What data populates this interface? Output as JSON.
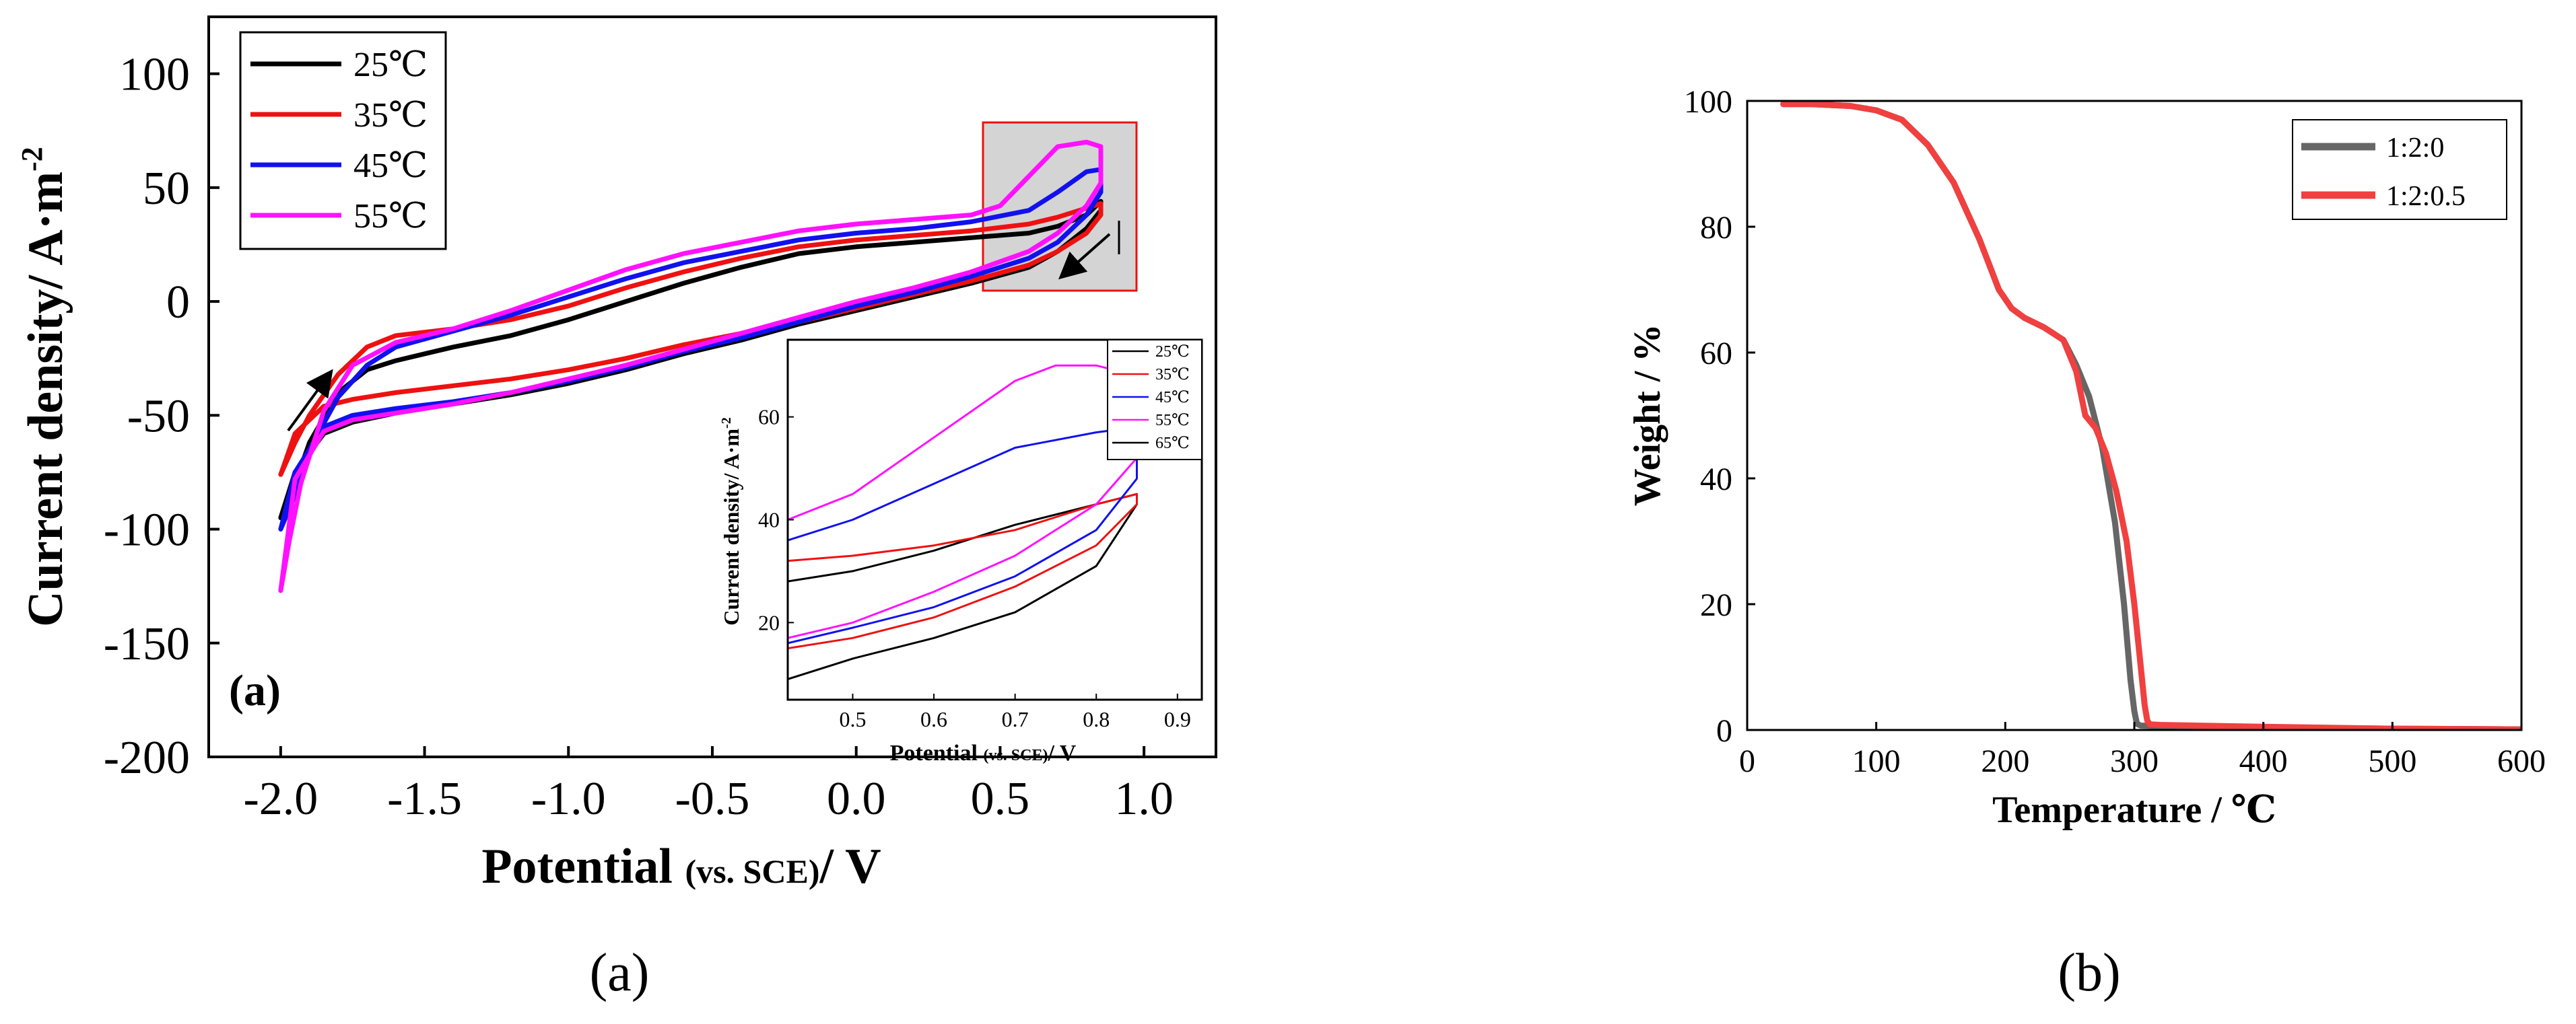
{
  "panels": {
    "a": {
      "caption": "(a)",
      "panel_tag": "(a)"
    },
    "b": {
      "caption": "(b)"
    }
  },
  "chart_data": [
    {
      "id": "a-main",
      "type": "line",
      "title": "",
      "xlabel_parts": [
        "Potential ",
        "(vs. SCE)",
        "/ V"
      ],
      "ylabel_parts": [
        "Current density/ A·m",
        "-2"
      ],
      "xlim": [
        -2.25,
        1.25
      ],
      "ylim": [
        -200,
        125
      ],
      "xticks": [
        -2.0,
        -1.5,
        -1.0,
        -0.5,
        0.0,
        0.5,
        1.0
      ],
      "xtick_labels": [
        "-2.0",
        "-1.5",
        "-1.0",
        "-0.5",
        "0.0",
        "0.5",
        "1.0"
      ],
      "yticks": [
        -200,
        -150,
        -100,
        -50,
        0,
        50,
        100
      ],
      "ytick_labels": [
        "-200",
        "-150",
        "-100",
        "-50",
        "0",
        "50",
        "100"
      ],
      "legend": [
        {
          "label": "25℃",
          "color": "#000000"
        },
        {
          "label": "35℃",
          "color": "#ee1111"
        },
        {
          "label": "45℃",
          "color": "#1111ee"
        },
        {
          "label": "55℃",
          "color": "#ff11ff"
        }
      ],
      "series": [
        {
          "name": "25℃",
          "color": "#000000",
          "x": [
            -2.0,
            -1.95,
            -1.9,
            -1.8,
            -1.7,
            -1.6,
            -1.4,
            -1.2,
            -1.0,
            -0.8,
            -0.6,
            -0.4,
            -0.2,
            0.0,
            0.2,
            0.4,
            0.6,
            0.7,
            0.8,
            0.85,
            0.85,
            0.8,
            0.7,
            0.6,
            0.4,
            0.2,
            0.0,
            -0.2,
            -0.4,
            -0.6,
            -0.8,
            -1.0,
            -1.2,
            -1.4,
            -1.6,
            -1.75,
            -1.85,
            -1.95,
            -2.0
          ],
          "y": [
            -95,
            -80,
            -62,
            -40,
            -30,
            -26,
            -20,
            -15,
            -8,
            0,
            8,
            15,
            21,
            24,
            26,
            28,
            30,
            33,
            38,
            44,
            40,
            32,
            22,
            15,
            8,
            2,
            -4,
            -10,
            -17,
            -23,
            -30,
            -36,
            -41,
            -45,
            -49,
            -53,
            -58,
            -75,
            -95
          ]
        },
        {
          "name": "35℃",
          "color": "#ee1111",
          "x": [
            -2.0,
            -1.95,
            -1.9,
            -1.8,
            -1.7,
            -1.6,
            -1.4,
            -1.2,
            -1.0,
            -0.8,
            -0.6,
            -0.4,
            -0.2,
            0.0,
            0.2,
            0.4,
            0.6,
            0.7,
            0.8,
            0.85,
            0.85,
            0.8,
            0.7,
            0.6,
            0.4,
            0.2,
            0.0,
            -0.2,
            -0.4,
            -0.6,
            -0.8,
            -1.0,
            -1.2,
            -1.4,
            -1.6,
            -1.75,
            -1.85,
            -1.95,
            -2.0
          ],
          "y": [
            -76,
            -62,
            -50,
            -32,
            -20,
            -15,
            -12,
            -8,
            -2,
            6,
            13,
            19,
            24,
            27,
            29,
            31,
            34,
            37,
            41,
            43,
            38,
            30,
            22,
            16,
            9,
            3,
            -3,
            -9,
            -14,
            -19,
            -25,
            -30,
            -34,
            -37,
            -40,
            -43,
            -46,
            -58,
            -76
          ]
        },
        {
          "name": "45℃",
          "color": "#1111ee",
          "x": [
            -2.0,
            -1.95,
            -1.9,
            -1.8,
            -1.7,
            -1.6,
            -1.4,
            -1.2,
            -1.0,
            -0.8,
            -0.6,
            -0.4,
            -0.2,
            0.0,
            0.2,
            0.4,
            0.6,
            0.7,
            0.8,
            0.85,
            0.85,
            0.8,
            0.7,
            0.6,
            0.4,
            0.2,
            0.0,
            -0.2,
            -0.4,
            -0.6,
            -0.8,
            -1.0,
            -1.2,
            -1.4,
            -1.6,
            -1.75,
            -1.85,
            -1.95,
            -2.0
          ],
          "y": [
            -100,
            -85,
            -65,
            -42,
            -28,
            -20,
            -13,
            -6,
            2,
            10,
            17,
            22,
            27,
            30,
            32,
            35,
            40,
            48,
            57,
            58,
            48,
            38,
            26,
            19,
            11,
            4,
            -2,
            -9,
            -16,
            -22,
            -29,
            -35,
            -40,
            -44,
            -47,
            -50,
            -55,
            -75,
            -100
          ]
        },
        {
          "name": "55℃",
          "color": "#ff11ff",
          "x": [
            -2.0,
            -1.97,
            -1.93,
            -1.85,
            -1.75,
            -1.6,
            -1.4,
            -1.2,
            -1.0,
            -0.8,
            -0.6,
            -0.4,
            -0.2,
            0.0,
            0.2,
            0.4,
            0.5,
            0.6,
            0.7,
            0.8,
            0.85,
            0.85,
            0.8,
            0.7,
            0.6,
            0.4,
            0.2,
            0.0,
            -0.2,
            -0.4,
            -0.6,
            -0.8,
            -1.0,
            -1.2,
            -1.4,
            -1.6,
            -1.75,
            -1.85,
            -1.95,
            -2.0
          ],
          "y": [
            -127,
            -105,
            -80,
            -48,
            -28,
            -18,
            -12,
            -4,
            5,
            14,
            21,
            26,
            31,
            34,
            36,
            38,
            42,
            55,
            68,
            70,
            68,
            52,
            42,
            30,
            22,
            13,
            6,
            0,
            -7,
            -14,
            -21,
            -28,
            -34,
            -40,
            -45,
            -49,
            -52,
            -57,
            -78,
            -127
          ]
        }
      ],
      "annotations": [
        "arrow-forward-scan",
        "arrow-reverse-scan",
        "zoom-box"
      ]
    },
    {
      "id": "a-inset",
      "type": "line",
      "xlabel_parts": [
        "Potential ",
        "(vs. SCE)",
        "/ V"
      ],
      "ylabel_parts": [
        "Current density/ A·m",
        "-2"
      ],
      "xlim": [
        0.42,
        0.93
      ],
      "ylim": [
        5,
        75
      ],
      "xticks": [
        0.5,
        0.6,
        0.7,
        0.8,
        0.9
      ],
      "xtick_labels": [
        "0.5",
        "0.6",
        "0.7",
        "0.8",
        "0.9"
      ],
      "yticks": [
        20,
        40,
        60
      ],
      "ytick_labels": [
        "20",
        "40",
        "60"
      ],
      "legend": [
        {
          "label": "25℃",
          "color": "#000000"
        },
        {
          "label": "35℃",
          "color": "#ee1111"
        },
        {
          "label": "45℃",
          "color": "#1111ee"
        },
        {
          "label": "55℃",
          "color": "#ff11ff"
        },
        {
          "label": "65℃",
          "color": "#000000"
        }
      ],
      "series": [
        {
          "name": "25℃",
          "color": "#000000",
          "x": [
            0.42,
            0.5,
            0.6,
            0.7,
            0.8,
            0.85,
            0.85,
            0.8,
            0.7,
            0.6,
            0.5,
            0.42
          ],
          "y": [
            28,
            30,
            34,
            39,
            43,
            45,
            43,
            31,
            22,
            17,
            13,
            9
          ]
        },
        {
          "name": "35℃",
          "color": "#ee1111",
          "x": [
            0.42,
            0.5,
            0.6,
            0.7,
            0.8,
            0.85,
            0.85,
            0.8,
            0.7,
            0.6,
            0.5,
            0.42
          ],
          "y": [
            32,
            33,
            35,
            38,
            43,
            45,
            43,
            35,
            27,
            21,
            17,
            15
          ]
        },
        {
          "name": "45℃",
          "color": "#1111ee",
          "x": [
            0.42,
            0.5,
            0.6,
            0.7,
            0.8,
            0.85,
            0.85,
            0.8,
            0.7,
            0.6,
            0.5,
            0.42
          ],
          "y": [
            36,
            40,
            47,
            54,
            57,
            58,
            48,
            38,
            29,
            23,
            19,
            16
          ]
        },
        {
          "name": "55℃",
          "color": "#ff11ff",
          "x": [
            0.42,
            0.5,
            0.6,
            0.7,
            0.75,
            0.8,
            0.85,
            0.85,
            0.8,
            0.7,
            0.6,
            0.5,
            0.42
          ],
          "y": [
            40,
            45,
            56,
            67,
            70,
            70,
            68,
            52,
            43,
            33,
            26,
            20,
            17
          ]
        }
      ]
    },
    {
      "id": "b-main",
      "type": "line",
      "title": "",
      "xlabel": "Temperature / ℃",
      "ylabel": "Weight  / %",
      "xlim": [
        0,
        600
      ],
      "ylim": [
        0,
        100
      ],
      "xticks": [
        0,
        100,
        200,
        300,
        400,
        500,
        600
      ],
      "xtick_labels": [
        "0",
        "100",
        "200",
        "300",
        "400",
        "500",
        "600"
      ],
      "yticks": [
        0,
        20,
        40,
        60,
        80,
        100
      ],
      "ytick_labels": [
        "0",
        "20",
        "40",
        "60",
        "80",
        "100"
      ],
      "legend": [
        {
          "label": "1:2:0",
          "color": "#666666"
        },
        {
          "label": "1:2:0.5",
          "color": "#f04040"
        }
      ],
      "series": [
        {
          "name": "1:2:0",
          "color": "#666666",
          "x": [
            28,
            50,
            80,
            100,
            120,
            140,
            160,
            180,
            195,
            205,
            215,
            230,
            245,
            255,
            265,
            275,
            285,
            292,
            297,
            300,
            302,
            305,
            320,
            400,
            500,
            600
          ],
          "y": [
            99.5,
            99.5,
            99.2,
            98.5,
            97,
            93,
            87,
            78,
            70,
            67,
            65.5,
            64,
            62,
            58,
            53,
            45,
            33,
            20,
            8,
            3,
            1,
            0.7,
            0.6,
            0.4,
            0.2,
            0.1
          ]
        },
        {
          "name": "1:2:0.5",
          "color": "#f04040",
          "x": [
            28,
            50,
            80,
            100,
            120,
            140,
            160,
            180,
            195,
            205,
            215,
            230,
            245,
            255,
            262,
            270,
            278,
            286,
            294,
            300,
            305,
            308,
            310,
            312,
            320,
            400,
            500,
            600
          ],
          "y": [
            99.5,
            99.5,
            99.2,
            98.5,
            97,
            93,
            87,
            78,
            70,
            67,
            65.5,
            64,
            62,
            57,
            50,
            48,
            44,
            38,
            30,
            20,
            10,
            4,
            1.5,
            0.9,
            0.8,
            0.5,
            0.2,
            0.1
          ]
        }
      ]
    }
  ]
}
